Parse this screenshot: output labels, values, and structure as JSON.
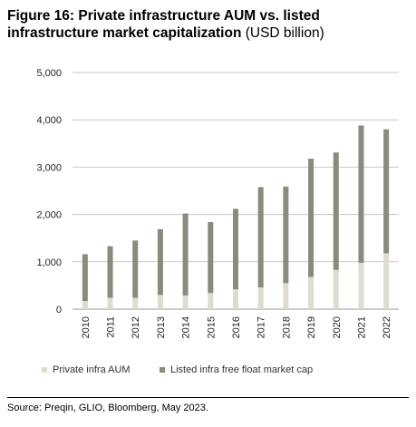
{
  "title_bold": "Figure 16: Private infrastructure AUM vs. listed infrastructure market capitalization",
  "title_unit": "(USD billion)",
  "source": "Source: Preqin, GLIO, Bloomberg, May 2023.",
  "colors": {
    "private": "#dedbd0",
    "listed": "#8a8a7d",
    "grid": "#c9c9c9"
  },
  "chart_data": {
    "type": "bar",
    "stacked": true,
    "categories": [
      "2010",
      "2011",
      "2012",
      "2013",
      "2014",
      "2015",
      "2016",
      "2017",
      "2018",
      "2019",
      "2020",
      "2021",
      "2022"
    ],
    "series": [
      {
        "name": "Private infra AUM",
        "values": [
          170,
          240,
          240,
          300,
          290,
          340,
          420,
          460,
          550,
          680,
          830,
          980,
          1180
        ]
      },
      {
        "name": "Listed infra free float market cap",
        "values": [
          990,
          1090,
          1210,
          1390,
          1730,
          1500,
          1700,
          2120,
          2040,
          2500,
          2480,
          2900,
          2620
        ]
      }
    ],
    "yticks": [
      "0",
      "1,000",
      "2,000",
      "3,000",
      "4,000",
      "5,000"
    ],
    "ylim": [
      0,
      5000
    ],
    "grid": true,
    "legend_position": "bottom"
  }
}
